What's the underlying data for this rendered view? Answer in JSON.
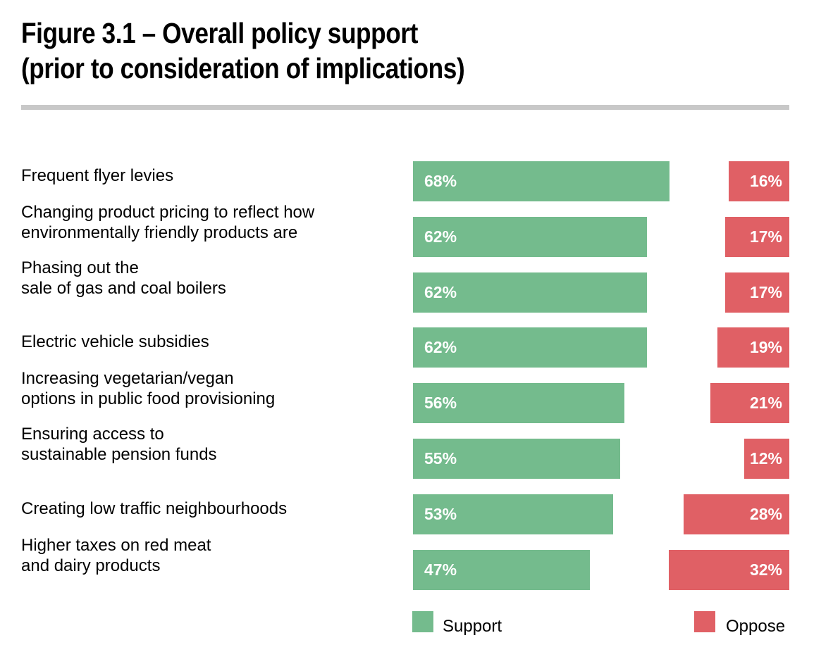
{
  "title": {
    "line1": "Figure 3.1 – Overall policy support",
    "line2": "(prior to consideration of implications)"
  },
  "colors": {
    "support": "#74bb8d",
    "oppose": "#e06065",
    "rule": "#c8c8c8"
  },
  "chart_data": {
    "type": "bar",
    "orientation": "horizontal",
    "title": "Figure 3.1 – Overall policy support (prior to consideration of implications)",
    "categories": [
      [
        "Frequent flyer levies"
      ],
      [
        "Changing product pricing to reflect how",
        "environmentally friendly products are"
      ],
      [
        "Phasing out the",
        "sale of gas and coal boilers"
      ],
      [
        "Electric vehicle subsidies"
      ],
      [
        "Increasing vegetarian/vegan",
        "options in public food provisioning"
      ],
      [
        "Ensuring access to",
        "sustainable pension funds"
      ],
      [
        "Creating low traffic neighbourhoods"
      ],
      [
        "Higher taxes on red meat",
        "and dairy products"
      ]
    ],
    "series": [
      {
        "name": "Support",
        "values": [
          68,
          62,
          62,
          62,
          56,
          55,
          53,
          47
        ],
        "labels": [
          "68%",
          "62%",
          "62%",
          "62%",
          "56%",
          "55%",
          "53%",
          "47%"
        ]
      },
      {
        "name": "Oppose",
        "values": [
          16,
          17,
          17,
          19,
          21,
          12,
          28,
          32
        ],
        "labels": [
          "16%",
          "17%",
          "17%",
          "19%",
          "21%",
          "12%",
          "28%",
          "32%"
        ]
      }
    ],
    "unit": "%",
    "legend": {
      "items": [
        "Support",
        "Oppose"
      ],
      "position": "bottom"
    }
  }
}
